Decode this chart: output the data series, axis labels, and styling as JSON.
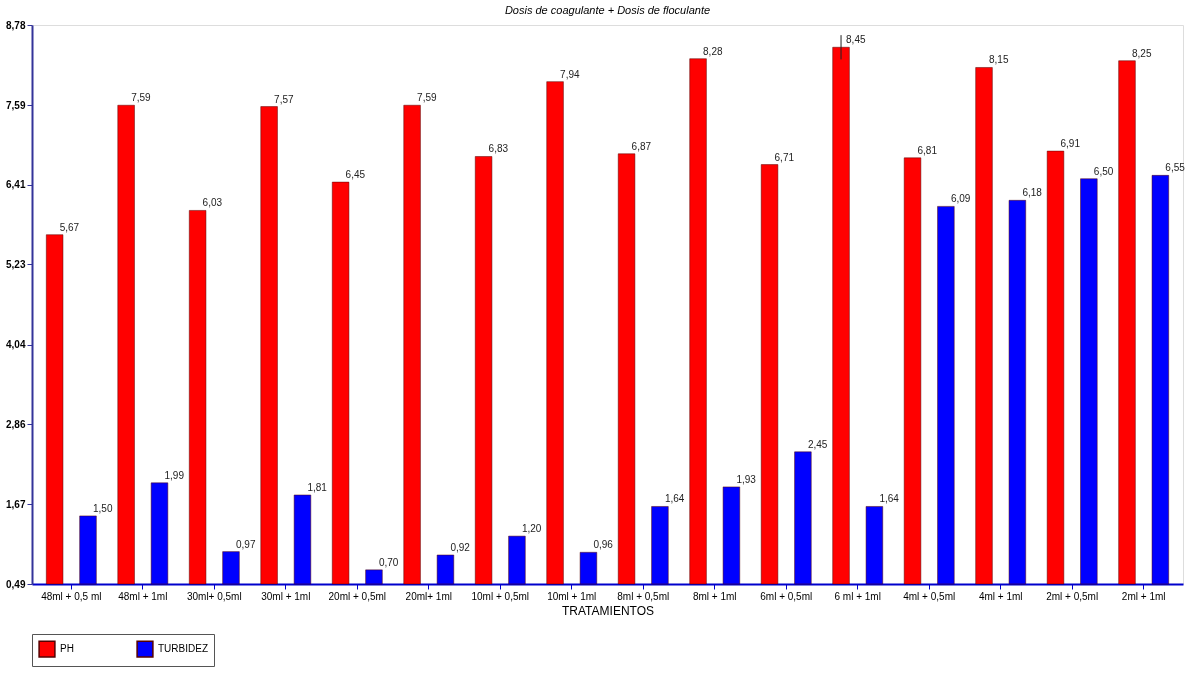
{
  "chart_data": {
    "type": "bar",
    "title": "Dosis de coagulante + Dosis de floculante",
    "xlabel": "TRATAMIENTOS",
    "categories": [
      "48ml + 0,5 ml",
      "48ml + 1ml",
      "30ml+ 0,5ml",
      "30ml + 1ml",
      "20ml + 0,5ml",
      "20ml+ 1ml",
      "10ml + 0,5ml",
      "10ml + 1ml",
      "8ml + 0,5ml",
      "8ml + 1ml",
      "6ml + 0,5ml",
      "6 ml + 1ml",
      "4ml + 0,5ml",
      "4ml + 1ml",
      "2ml + 0,5ml",
      "2ml + 1ml"
    ],
    "series": [
      {
        "name": "PH",
        "color": "#ff0000",
        "values": [
          5.67,
          7.59,
          6.03,
          7.57,
          6.45,
          7.59,
          6.83,
          7.94,
          6.87,
          8.28,
          6.71,
          8.45,
          6.81,
          8.15,
          6.91,
          8.25
        ],
        "value_labels": [
          "5,67",
          "7,59",
          "6,03",
          "7,57",
          "6,45",
          "7,59",
          "6,83",
          "7,94",
          "6,87",
          "8,28",
          "6,71",
          "8,45",
          "6,81",
          "8,15",
          "6,91",
          "8,25"
        ],
        "errors": [
          null,
          null,
          null,
          null,
          null,
          null,
          null,
          null,
          null,
          null,
          null,
          0.18,
          null,
          null,
          null,
          null
        ]
      },
      {
        "name": "TURBIDEZ",
        "color": "#0000ff",
        "values": [
          1.5,
          1.99,
          0.97,
          1.81,
          0.7,
          0.92,
          1.2,
          0.96,
          1.64,
          1.93,
          2.45,
          1.64,
          6.09,
          6.18,
          6.5,
          6.55
        ],
        "value_labels": [
          "1,50",
          "1,99",
          "0,97",
          "1,81",
          "0,70",
          "0,92",
          "1,20",
          "0,96",
          "1,64",
          "1,93",
          "2,45",
          "1,64",
          "6,09",
          "6,18",
          "6,50",
          "6,55"
        ]
      }
    ],
    "ylim": [
      0.49,
      8.78
    ],
    "yticks": [
      {
        "value": 0.49,
        "label": "0,49"
      },
      {
        "value": 1.67,
        "label": "1,67"
      },
      {
        "value": 2.86,
        "label": "2,86"
      },
      {
        "value": 4.04,
        "label": "4,04"
      },
      {
        "value": 5.23,
        "label": "5,23"
      },
      {
        "value": 6.41,
        "label": "6,41"
      },
      {
        "value": 7.59,
        "label": "7,59"
      },
      {
        "value": 8.78,
        "label": "8,78"
      }
    ],
    "legend": "bottom",
    "grid": false
  }
}
